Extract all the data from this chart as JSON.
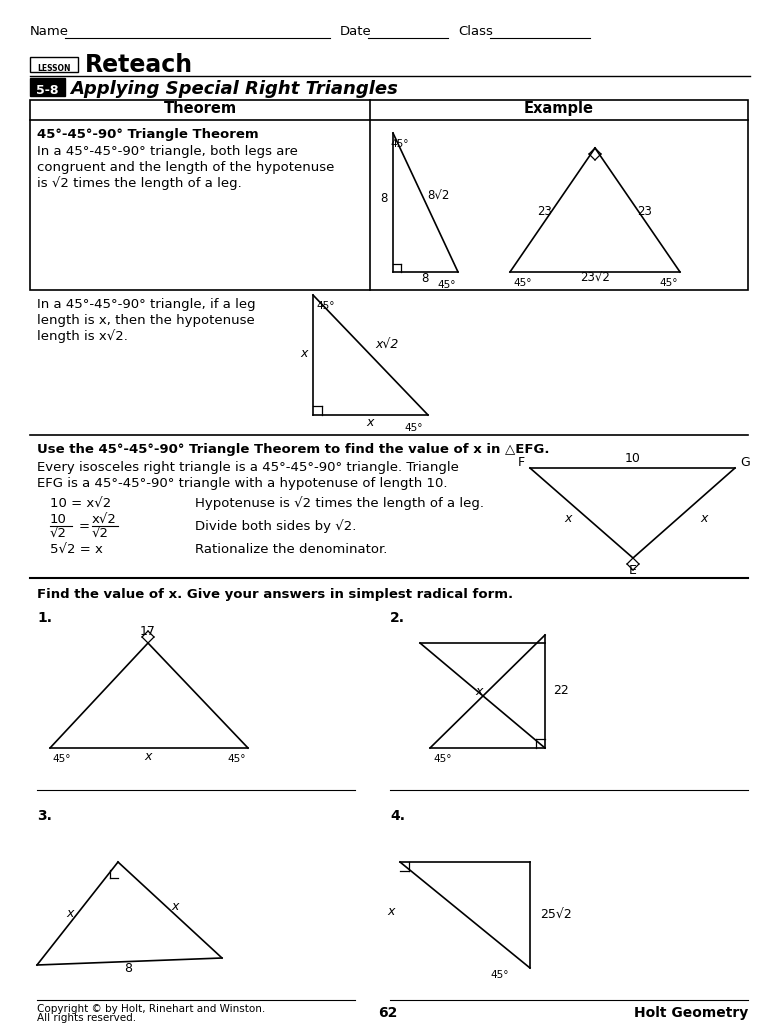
{
  "page_width": 7.77,
  "page_height": 10.24,
  "bg_color": "#ffffff",
  "title_reteach": "Reteach",
  "title_number": "5-8",
  "title_subtitle": "Applying Special Right Triangles",
  "theorem_header": "Theorem",
  "example_header": "Example",
  "theorem_title": "45°-45°-90° Triangle Theorem",
  "theorem_text1": "In a 45°-45°-90° triangle, both legs are",
  "theorem_text2": "congruent and the length of the hypotenuse",
  "theorem_text3": "is √2 times the length of a leg.",
  "para2_line1": "In a 45°-45°-90° triangle, if a leg",
  "para2_line2": "length is x, then the hypotenuse",
  "para2_line3": "length is x√2.",
  "use_theorem_bold": "Use the 45°-45°-90° Triangle Theorem to find the value of x in △EFG.",
  "every_line1": "Every isosceles right triangle is a 45°-45°-90° triangle. Triangle",
  "every_line2": "EFG is a 45°-45°-90° triangle with a hypotenuse of length 10.",
  "eq1_right": "Hypotenuse is √2 times the length of a leg.",
  "eq2_right": "Divide both sides by √2.",
  "eq3_right": "Rationalize the denominator.",
  "find_value_bold": "Find the value of x. Give your answers in simplest radical form.",
  "footer_copyright": "Copyright © by Holt, Rinehart and Winston.",
  "footer_rights": "All rights reserved.",
  "footer_page": "62",
  "footer_title": "Holt Geometry"
}
